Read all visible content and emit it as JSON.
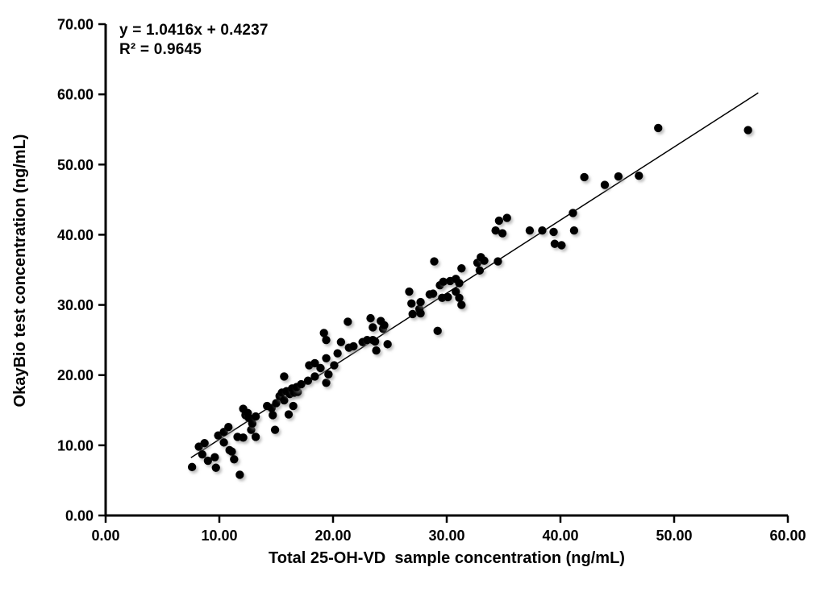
{
  "chart_data": {
    "type": "scatter",
    "title": "",
    "xlabel": "Total 25-OH-VD  sample concentration (ng/mL)",
    "ylabel": "OkayBio test concentration (ng/mL)",
    "equation": "y = 1.0416x + 0.4237",
    "r_squared": "R² = 0.9645",
    "xlim": [
      0,
      60
    ],
    "ylim": [
      0,
      70
    ],
    "x_ticks": [
      "0.00",
      "10.00",
      "20.00",
      "30.00",
      "40.00",
      "50.00",
      "60.00"
    ],
    "y_ticks": [
      "0.00",
      "10.00",
      "20.00",
      "30.00",
      "40.00",
      "50.00",
      "60.00",
      "70.00"
    ],
    "grid": false,
    "legend": false,
    "marker_color": "#000000",
    "axis_color": "#000000",
    "trendline": {
      "slope": 1.0416,
      "intercept": 0.4237,
      "x_start": 7.5,
      "x_end": 57.4,
      "color": "#000000"
    },
    "points": [
      [
        7.6,
        6.9
      ],
      [
        8.2,
        9.8
      ],
      [
        8.5,
        8.7
      ],
      [
        8.7,
        10.3
      ],
      [
        9.0,
        7.8
      ],
      [
        9.6,
        8.3
      ],
      [
        9.7,
        6.8
      ],
      [
        9.9,
        11.4
      ],
      [
        10.4,
        11.9
      ],
      [
        10.4,
        10.4
      ],
      [
        10.8,
        12.6
      ],
      [
        10.9,
        9.3
      ],
      [
        11.1,
        9.1
      ],
      [
        11.3,
        8.0
      ],
      [
        11.6,
        11.2
      ],
      [
        11.8,
        5.8
      ],
      [
        12.1,
        11.1
      ],
      [
        12.8,
        12.2
      ],
      [
        13.2,
        11.2
      ],
      [
        12.1,
        15.2
      ],
      [
        12.3,
        14.3
      ],
      [
        12.5,
        14.6
      ],
      [
        12.6,
        13.9
      ],
      [
        12.9,
        13.1
      ],
      [
        13.2,
        14.1
      ],
      [
        14.2,
        15.6
      ],
      [
        14.6,
        15.3
      ],
      [
        14.7,
        14.3
      ],
      [
        14.9,
        12.2
      ],
      [
        15.0,
        16.0
      ],
      [
        15.3,
        17.0
      ],
      [
        15.5,
        17.5
      ],
      [
        15.7,
        16.4
      ],
      [
        15.7,
        19.8
      ],
      [
        15.9,
        17.7
      ],
      [
        16.1,
        14.4
      ],
      [
        16.2,
        17.3
      ],
      [
        16.4,
        18.1
      ],
      [
        16.5,
        15.6
      ],
      [
        16.6,
        17.5
      ],
      [
        16.9,
        17.6
      ],
      [
        16.8,
        18.3
      ],
      [
        17.2,
        18.7
      ],
      [
        17.8,
        19.2
      ],
      [
        17.9,
        21.4
      ],
      [
        18.4,
        21.7
      ],
      [
        18.4,
        19.8
      ],
      [
        18.9,
        21.0
      ],
      [
        19.2,
        26.0
      ],
      [
        19.4,
        25.0
      ],
      [
        19.4,
        22.4
      ],
      [
        19.4,
        18.9
      ],
      [
        19.6,
        20.1
      ],
      [
        20.1,
        21.4
      ],
      [
        20.4,
        23.1
      ],
      [
        20.7,
        24.7
      ],
      [
        21.3,
        27.6
      ],
      [
        21.4,
        23.9
      ],
      [
        21.8,
        24.1
      ],
      [
        22.6,
        24.7
      ],
      [
        23.0,
        25.0
      ],
      [
        23.3,
        28.1
      ],
      [
        23.5,
        26.8
      ],
      [
        23.5,
        25.0
      ],
      [
        23.7,
        24.8
      ],
      [
        23.8,
        23.5
      ],
      [
        24.2,
        27.7
      ],
      [
        24.4,
        26.6
      ],
      [
        24.5,
        27.1
      ],
      [
        24.8,
        24.4
      ],
      [
        26.7,
        31.9
      ],
      [
        26.9,
        30.2
      ],
      [
        27.0,
        28.7
      ],
      [
        27.6,
        29.4
      ],
      [
        27.7,
        30.4
      ],
      [
        27.7,
        28.8
      ],
      [
        28.5,
        31.5
      ],
      [
        28.8,
        31.6
      ],
      [
        28.9,
        36.2
      ],
      [
        29.2,
        26.3
      ],
      [
        29.4,
        32.8
      ],
      [
        29.6,
        31.0
      ],
      [
        29.7,
        33.3
      ],
      [
        30.1,
        31.1
      ],
      [
        30.3,
        33.4
      ],
      [
        30.8,
        33.7
      ],
      [
        30.8,
        31.9
      ],
      [
        31.1,
        33.1
      ],
      [
        31.1,
        31.0
      ],
      [
        31.3,
        35.2
      ],
      [
        31.3,
        30.0
      ],
      [
        32.7,
        36.0
      ],
      [
        32.9,
        34.9
      ],
      [
        33.0,
        36.8
      ],
      [
        33.3,
        36.3
      ],
      [
        34.3,
        40.6
      ],
      [
        34.5,
        36.2
      ],
      [
        34.6,
        42.0
      ],
      [
        34.9,
        40.2
      ],
      [
        35.3,
        42.4
      ],
      [
        37.3,
        40.6
      ],
      [
        38.4,
        40.6
      ],
      [
        39.4,
        40.4
      ],
      [
        39.5,
        38.7
      ],
      [
        40.1,
        38.5
      ],
      [
        41.1,
        43.1
      ],
      [
        41.2,
        40.6
      ],
      [
        42.1,
        48.2
      ],
      [
        43.9,
        47.1
      ],
      [
        45.1,
        48.3
      ],
      [
        46.9,
        48.4
      ],
      [
        48.6,
        55.2
      ],
      [
        56.5,
        54.9
      ]
    ]
  }
}
